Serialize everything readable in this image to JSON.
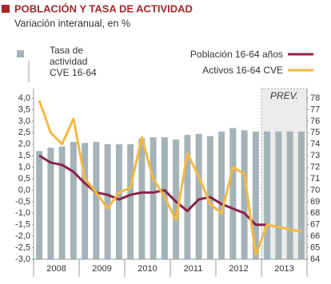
{
  "chart_data": {
    "type": "bar-line",
    "title": "POBLACIÓN Y TASA DE ACTIVIDAD",
    "subtitle": "Variación interanual, en %",
    "annotation": "PREV.",
    "categories": [
      null,
      null,
      null,
      null,
      null,
      null,
      null,
      null,
      null,
      null,
      null,
      null,
      null,
      null,
      null,
      null,
      null,
      null,
      null,
      null,
      null,
      null,
      null,
      null
    ],
    "year_labels": [
      "2008",
      "2009",
      "2010",
      "2011",
      "2012",
      "2013"
    ],
    "forecast_start": 20,
    "series": [
      {
        "name": "Tasa de actividad CVE 16-64",
        "kind": "bar",
        "axis": "y2",
        "color": "#a3b3b8",
        "values": [
          73.4,
          73.7,
          73.8,
          74.2,
          74.1,
          74.2,
          74.0,
          74.0,
          74.0,
          74.5,
          74.6,
          74.6,
          74.4,
          74.8,
          74.9,
          74.7,
          75.1,
          75.4,
          75.2,
          75.1,
          75.1,
          75.1,
          75.1,
          75.1
        ]
      },
      {
        "name": "Población 16-64 años",
        "kind": "line",
        "color": "#8b2346",
        "values": [
          1.5,
          1.2,
          1.1,
          0.8,
          0.3,
          -0.1,
          -0.2,
          -0.4,
          -0.2,
          -0.1,
          -0.1,
          0.0,
          -0.5,
          -0.9,
          -0.4,
          -0.3,
          -0.6,
          -0.8,
          -1.0,
          -1.5,
          -1.5,
          null,
          null,
          null
        ]
      },
      {
        "name": "Activos 16-64 CVE",
        "kind": "line",
        "color": "#f5b942",
        "values": [
          3.9,
          2.5,
          2.0,
          3.1,
          0.5,
          -0.1,
          -0.8,
          -0.1,
          0.1,
          2.3,
          0.5,
          -0.3,
          -1.3,
          1.6,
          0.6,
          -0.6,
          -1.0,
          1.0,
          0.7,
          -2.8,
          -1.5,
          -1.6,
          -1.7,
          -1.8
        ]
      }
    ],
    "ylim": [
      -3,
      4
    ],
    "yticks": [
      {
        "value": 4,
        "label": "4,0"
      },
      {
        "value": 3.5,
        "label": "3,5"
      },
      {
        "value": 3,
        "label": "3,0"
      },
      {
        "value": 2.5,
        "label": "2,5"
      },
      {
        "value": 2,
        "label": "2,0"
      },
      {
        "value": 1.5,
        "label": "1,5"
      },
      {
        "value": 1,
        "label": "1,0"
      },
      {
        "value": 0.5,
        "label": "0,5"
      },
      {
        "value": 0,
        "label": "0,0"
      },
      {
        "value": -0.5,
        "label": "-0,5"
      },
      {
        "value": -1,
        "label": "-1,0"
      },
      {
        "value": -1.5,
        "label": "-1,5"
      },
      {
        "value": -2,
        "label": "-2,0"
      },
      {
        "value": -2.5,
        "label": "-2,5"
      },
      {
        "value": -3,
        "label": "-3,0"
      }
    ],
    "y2lim": [
      64,
      78
    ],
    "y2ticks": [
      78,
      77,
      76,
      75,
      74,
      73,
      72,
      71,
      70,
      69,
      68,
      67,
      66,
      65,
      64
    ]
  }
}
